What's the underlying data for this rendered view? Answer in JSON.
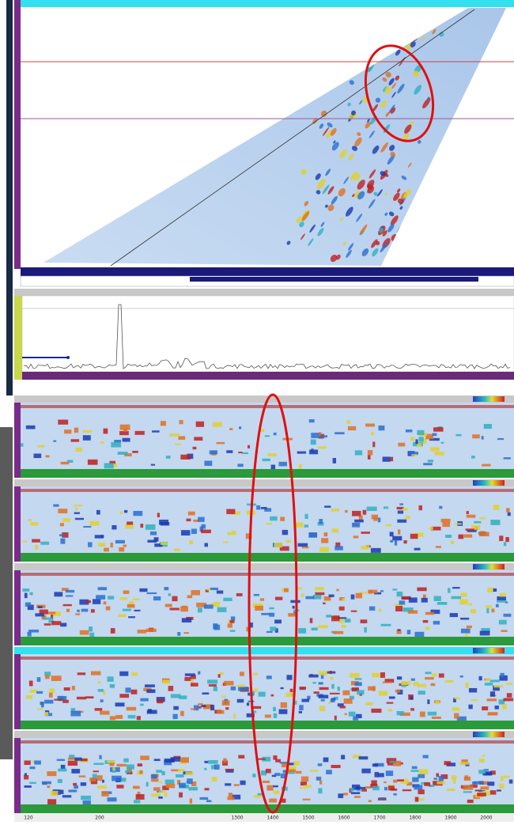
{
  "bottom_axis": {
    "labels": [
      "120",
      "200",
      "1300",
      "1400",
      "1500",
      "1600",
      "1700",
      "1800",
      "1900",
      "2000"
    ]
  }
}
